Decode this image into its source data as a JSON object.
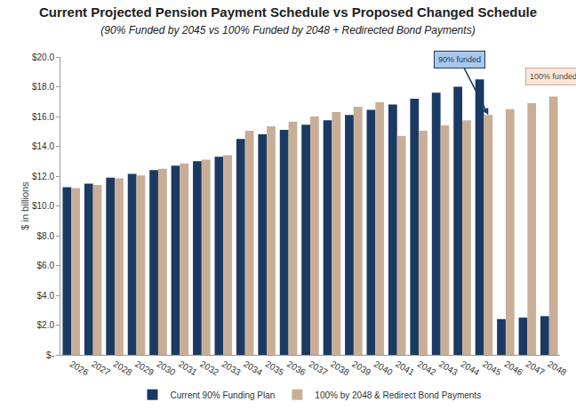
{
  "chart_data": {
    "type": "bar",
    "title": "Current Projected Pension Payment Schedule vs Proposed Changed Schedule",
    "subtitle": "(90% Funded by 2045 vs 100% Funded by 2048 + Redirected Bond Payments)",
    "y_label": "$ in billions",
    "categories": [
      "2026",
      "2027",
      "2028",
      "2029",
      "2030",
      "2031",
      "2032",
      "2033",
      "2034",
      "2035",
      "2036",
      "2037",
      "2038",
      "2039",
      "2040",
      "2041",
      "2042",
      "2043",
      "2044",
      "2045",
      "2046",
      "2047",
      "2048"
    ],
    "series": [
      {
        "name": "Current 90% Funding Plan",
        "color": "#1b3a63",
        "values": [
          11.25,
          11.5,
          11.9,
          12.15,
          12.4,
          12.7,
          13.0,
          13.3,
          14.5,
          14.8,
          15.1,
          15.45,
          15.75,
          16.1,
          16.45,
          16.8,
          17.2,
          17.6,
          18.0,
          18.5,
          2.4,
          2.5,
          2.6
        ]
      },
      {
        "name": "100% by 2048 & Redirect Bond Payments",
        "color": "#c9ae97",
        "values": [
          11.2,
          11.4,
          11.85,
          12.05,
          12.5,
          12.85,
          13.1,
          13.4,
          15.05,
          15.35,
          15.65,
          16.0,
          16.3,
          16.65,
          16.95,
          14.7,
          15.05,
          15.4,
          15.75,
          16.1,
          16.5,
          16.9,
          17.35
        ]
      }
    ],
    "ylim": [
      0,
      20
    ],
    "yticks": [
      {
        "value": 0,
        "label": "$-"
      },
      {
        "value": 2,
        "label": "$2.0"
      },
      {
        "value": 4,
        "label": "$4.0"
      },
      {
        "value": 6,
        "label": "$6.0"
      },
      {
        "value": 8,
        "label": "$8.0"
      },
      {
        "value": 10,
        "label": "$10.0"
      },
      {
        "value": 12,
        "label": "$12.0"
      },
      {
        "value": 14,
        "label": "$14.0"
      },
      {
        "value": 16,
        "label": "$16.0"
      },
      {
        "value": 18,
        "label": "$18.0"
      },
      {
        "value": 20,
        "label": "$20.0"
      }
    ],
    "grid": false,
    "legend": "bottom",
    "annotations": [
      {
        "text": "90% funded",
        "category": "2045",
        "series": "100% by 2048 & Redirect Bond Payments"
      },
      {
        "text": "100% funded",
        "category": "2048"
      }
    ]
  }
}
